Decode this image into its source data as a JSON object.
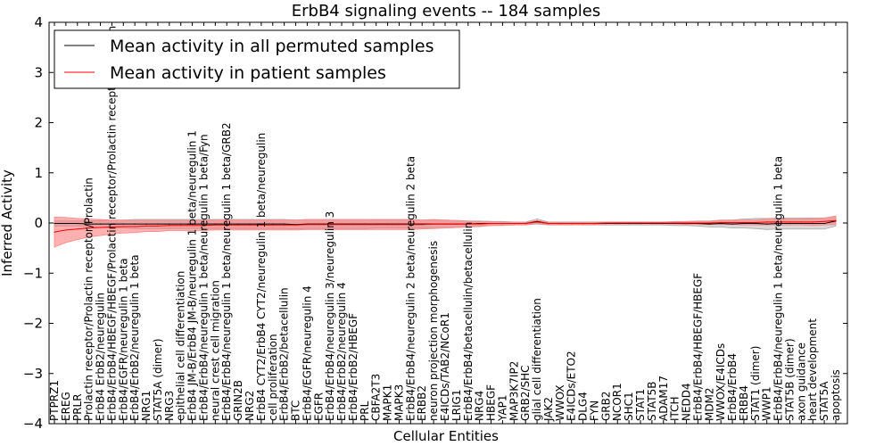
{
  "chart_data": {
    "type": "line",
    "title": "ErbB4 signaling events -- 184 samples",
    "xlabel": "Cellular Entities",
    "ylabel": "Inferred Activity",
    "ylim": [
      -4,
      4
    ],
    "yticks": [
      4,
      3,
      2,
      1,
      0,
      -1,
      -2,
      -3,
      -4
    ],
    "legend_position": "top-left",
    "categories": [
      "PTPRZ1",
      "EREG",
      "PRLR",
      "Prolactin receptor/Prolactin receptor/Prolactin",
      "ErbB4 ErbB2/neuregulin",
      "ErbB4/ErbB4/HBEGF/HBEGF/Prolactin receptor/Prolactin receptor/Prolactin",
      "ErbB4/EGFR/neuregulin 1 beta",
      "ErbB4/ErbB2/neuregulin 1 beta",
      "NRG1",
      "STAT5A (dimer)",
      "NRG3",
      "epithelial cell differentiation",
      "ErbB4 JM-B/ErbB4 JM-B/neuregulin 1 beta/neuregulin 1",
      "ErbB4/ErbB4/neuregulin 1 beta/neuregulin 1 beta/Fyn",
      "neural crest cell migration",
      "ErbB4/ErbB4/neuregulin 1 beta/neuregulin 1 beta/GRB2",
      "GRIN2B",
      "NRG2",
      "ErbB4 CYT2/ErbB4 CYT2/neuregulin 1 beta/neuregulin",
      "cell proliferation",
      "ErbB4/ErbB2/betacellulin",
      "BTC",
      "ErbB4/EGFR/neuregulin 4",
      "EGFR",
      "ErbB4/ErbB4/neuregulin 3/neuregulin 3",
      "ErbB4/ErbB2/neuregulin 4",
      "ErbB4/ErbB2/HBEGF",
      "PRL",
      "CBFA2T3",
      "MAPK1",
      "MAPK3",
      "ErbB4/ErbB4/neuregulin 2 beta/neuregulin 2 beta",
      "ERBB2",
      "neuron projection morphogenesis",
      "E4ICDs/TAB2/NCoR1",
      "LRIG1",
      "ErbB4/ErbB4/betacellulin/betacellulin",
      "NRG4",
      "HBEGF",
      "YAP1",
      "MAP3K7IP2",
      "GRB2/SHC",
      "glial cell differentiation",
      "JAK2",
      "WWOX",
      "E4ICDs/ETO2",
      "DLG4",
      "FYN",
      "GRB2",
      "NCOR1",
      "SHC1",
      "STAT1",
      "STAT5B",
      "ADAM17",
      "ITCH",
      "NEDD4",
      "ErbB4/ErbB4/HBEGF/HBEGF",
      "MDM2",
      "WWOX/E4ICDs",
      "ErbB4/ErbB4",
      "ERBB4",
      "STAT1 (dimer)",
      "WWP1",
      "ErbB4/ErbB4/neuregulin 1 beta/neuregulin 1 beta",
      "STAT5B (dimer)",
      "axon guidance",
      "heart development",
      "STAT5A",
      "apoptosis"
    ],
    "series": [
      {
        "name": "Mean activity in all permuted samples",
        "color": "#000000",
        "values": [
          -0.01,
          -0.01,
          -0.01,
          -0.02,
          -0.02,
          -0.02,
          -0.02,
          -0.02,
          -0.02,
          -0.02,
          -0.02,
          -0.02,
          -0.02,
          -0.02,
          -0.02,
          -0.02,
          -0.02,
          -0.02,
          -0.02,
          -0.02,
          -0.02,
          -0.03,
          -0.02,
          -0.02,
          -0.02,
          -0.02,
          -0.02,
          -0.02,
          -0.02,
          -0.02,
          -0.02,
          -0.02,
          -0.02,
          -0.02,
          -0.02,
          -0.02,
          -0.02,
          -0.01,
          -0.01,
          -0.01,
          -0.01,
          -0.01,
          0.03,
          -0.01,
          -0.01,
          -0.01,
          -0.01,
          -0.01,
          -0.01,
          -0.01,
          -0.01,
          -0.01,
          -0.01,
          -0.01,
          -0.01,
          -0.01,
          -0.01,
          -0.02,
          -0.01,
          -0.02,
          -0.01,
          -0.01,
          -0.02,
          -0.01,
          -0.01,
          -0.01,
          -0.01,
          -0.01,
          0.04
        ],
        "band": [
          0.05,
          0.05,
          0.05,
          0.06,
          0.07,
          0.08,
          0.08,
          0.09,
          0.09,
          0.09,
          0.09,
          0.09,
          0.09,
          0.09,
          0.09,
          0.09,
          0.09,
          0.09,
          0.09,
          0.09,
          0.09,
          0.09,
          0.09,
          0.09,
          0.09,
          0.09,
          0.09,
          0.09,
          0.08,
          0.08,
          0.08,
          0.08,
          0.08,
          0.08,
          0.08,
          0.07,
          0.06,
          0.05,
          0.04,
          0.04,
          0.03,
          0.03,
          0.05,
          0.03,
          0.03,
          0.03,
          0.03,
          0.03,
          0.03,
          0.03,
          0.03,
          0.03,
          0.03,
          0.03,
          0.04,
          0.04,
          0.05,
          0.06,
          0.07,
          0.08,
          0.09,
          0.1,
          0.11,
          0.11,
          0.11,
          0.11,
          0.11,
          0.11,
          0.1
        ]
      },
      {
        "name": "Mean activity in patient samples",
        "color": "#ff0000",
        "values": [
          -0.18,
          -0.14,
          -0.12,
          -0.1,
          -0.09,
          -0.08,
          -0.07,
          -0.07,
          -0.06,
          -0.06,
          -0.05,
          -0.05,
          -0.05,
          -0.05,
          -0.04,
          -0.04,
          -0.04,
          -0.04,
          -0.04,
          -0.04,
          -0.04,
          -0.04,
          -0.03,
          -0.03,
          -0.03,
          -0.03,
          -0.03,
          -0.03,
          -0.03,
          -0.03,
          -0.03,
          -0.03,
          -0.03,
          -0.02,
          -0.02,
          -0.02,
          -0.02,
          -0.02,
          -0.01,
          -0.01,
          -0.01,
          -0.01,
          0.02,
          -0.01,
          -0.01,
          -0.01,
          -0.01,
          -0.01,
          0.0,
          0.0,
          0.0,
          0.0,
          0.0,
          0.0,
          0.0,
          0.0,
          0.0,
          0.0,
          0.01,
          0.01,
          0.01,
          0.01,
          0.02,
          0.02,
          0.02,
          0.02,
          0.02,
          0.03,
          0.05
        ],
        "band": [
          0.3,
          0.25,
          0.21,
          0.18,
          0.16,
          0.14,
          0.13,
          0.12,
          0.11,
          0.11,
          0.1,
          0.1,
          0.1,
          0.1,
          0.1,
          0.1,
          0.1,
          0.1,
          0.1,
          0.1,
          0.1,
          0.1,
          0.1,
          0.1,
          0.1,
          0.1,
          0.1,
          0.1,
          0.1,
          0.1,
          0.1,
          0.1,
          0.09,
          0.09,
          0.08,
          0.07,
          0.06,
          0.05,
          0.04,
          0.03,
          0.03,
          0.02,
          0.03,
          0.02,
          0.02,
          0.02,
          0.02,
          0.02,
          0.02,
          0.02,
          0.02,
          0.02,
          0.02,
          0.02,
          0.02,
          0.03,
          0.03,
          0.03,
          0.04,
          0.04,
          0.05,
          0.05,
          0.06,
          0.06,
          0.06,
          0.06,
          0.07,
          0.07,
          0.08
        ]
      }
    ]
  }
}
